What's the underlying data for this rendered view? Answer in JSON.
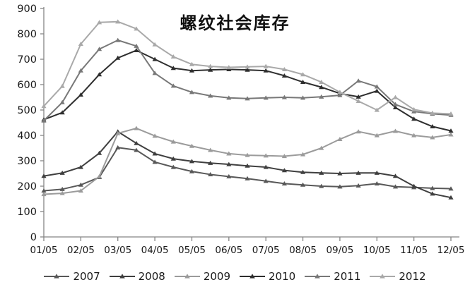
{
  "chart_data": {
    "type": "line",
    "title": "螺纹社会库存",
    "x": [
      "01/05",
      "01/20",
      "02/05",
      "02/20",
      "03/05",
      "03/20",
      "04/05",
      "04/20",
      "05/05",
      "05/20",
      "06/05",
      "06/20",
      "07/05",
      "07/20",
      "08/05",
      "08/20",
      "09/05",
      "09/20",
      "10/05",
      "10/20",
      "11/05",
      "11/20",
      "12/05"
    ],
    "x_tick_labels": [
      "01/05",
      "02/05",
      "03/05",
      "04/05",
      "05/05",
      "06/05",
      "07/05",
      "08/05",
      "09/05",
      "10/05",
      "11/05",
      "12/05"
    ],
    "ylim": [
      0,
      900
    ],
    "y_ticks": [
      0,
      100,
      200,
      300,
      400,
      500,
      600,
      700,
      800,
      900
    ],
    "grid": false,
    "marker": "triangle",
    "legend_position": "bottom",
    "axis_color": "#858585",
    "text_color": "#1a1a1a",
    "series": [
      {
        "name": "2007",
        "color": "#585858",
        "values": [
          182,
          188,
          205,
          235,
          352,
          342,
          295,
          275,
          258,
          246,
          238,
          230,
          220,
          210,
          205,
          200,
          198,
          202,
          210,
          198,
          195,
          192,
          190
        ]
      },
      {
        "name": "2008",
        "color": "#3f3f3f",
        "values": [
          240,
          252,
          275,
          330,
          415,
          369,
          328,
          308,
          298,
          291,
          286,
          280,
          275,
          262,
          255,
          252,
          250,
          252,
          252,
          240,
          200,
          170,
          155
        ]
      },
      {
        "name": "2009",
        "color": "#9b9b9b",
        "values": [
          168,
          172,
          182,
          238,
          408,
          428,
          398,
          375,
          358,
          342,
          328,
          322,
          320,
          318,
          325,
          350,
          385,
          415,
          400,
          417,
          400,
          392,
          403
        ]
      },
      {
        "name": "2010",
        "color": "#2e2e2e",
        "values": [
          462,
          490,
          560,
          640,
          705,
          735,
          700,
          665,
          655,
          658,
          660,
          658,
          655,
          635,
          610,
          590,
          565,
          552,
          575,
          510,
          465,
          435,
          418
        ]
      },
      {
        "name": "2011",
        "color": "#787878",
        "values": [
          458,
          530,
          655,
          740,
          775,
          752,
          645,
          595,
          570,
          556,
          548,
          545,
          548,
          550,
          548,
          552,
          558,
          615,
          592,
          522,
          494,
          485,
          480
        ]
      },
      {
        "name": "2012",
        "color": "#a9a9a9",
        "values": [
          515,
          594,
          760,
          845,
          848,
          820,
          758,
          710,
          680,
          672,
          668,
          670,
          672,
          660,
          640,
          610,
          570,
          535,
          500,
          550,
          502,
          488,
          485
        ]
      }
    ]
  },
  "layout_labels": {
    "legend_years": [
      "2007",
      "2008",
      "2009",
      "2010",
      "2011",
      "2012"
    ]
  }
}
